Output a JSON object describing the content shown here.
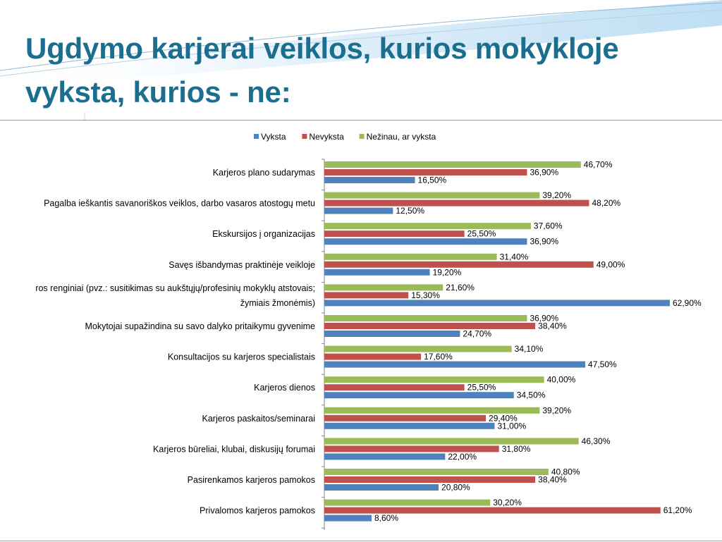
{
  "slide": {
    "title_line1": "Ugdymo karjerai veiklos, kurios mokykloje",
    "title_line2": "vyksta, kurios - ne:"
  },
  "chart_data": {
    "type": "bar",
    "orientation": "horizontal",
    "title": "",
    "xlabel": "",
    "ylabel": "",
    "xlim": [
      0,
      62.9
    ],
    "value_format": "percent_comma_2dp",
    "grid": false,
    "legend_position": "top",
    "categories": [
      "Karjeros plano sudarymas",
      "Pagalba ieškantis savanoriškos veiklos, darbo vasaros atostogų metu",
      "Ekskursijos į organizacijas",
      "Savęs išbandymas praktinėje veikloje",
      "Karjeros renginiai (pvz.: susitikimas su aukštųjų/profesinių mokyklų atstovais; žymiais žmonėmis)",
      "Mokytojai supažindina su savo dalyko pritaikymu gyvenime",
      "Konsultacijos su karjeros specialistais",
      "Karjeros dienos",
      "Karjeros paskaitos/seminarai",
      "Karjeros būreliai, klubai, diskusijų forumai",
      "Pasirenkamos karjeros pamokos",
      "Privalomos karjeros pamokos"
    ],
    "category_label_lines": [
      [
        "Karjeros plano sudarymas"
      ],
      [
        "Pagalba ieškantis savanoriškos veiklos, darbo vasaros atostogų metu"
      ],
      [
        "Ekskursijos į organizacijas"
      ],
      [
        "Savęs išbandymas praktinėje veikloje"
      ],
      [
        "ros renginiai (pvz.: susitikimas su aukštųjų/profesinių mokyklų atstovais;",
        "žymiais žmonėmis)"
      ],
      [
        "Mokytojai supažindina su savo dalyko pritaikymu gyvenime"
      ],
      [
        "Konsultacijos su karjeros specialistais"
      ],
      [
        "Karjeros dienos"
      ],
      [
        "Karjeros paskaitos/seminarai"
      ],
      [
        "Karjeros būreliai, klubai, diskusijų forumai"
      ],
      [
        "Pasirenkamos karjeros pamokos"
      ],
      [
        "Privalomos karjeros pamokos"
      ]
    ],
    "series": [
      {
        "name": "Vyksta",
        "color": "#4f81bd",
        "values": [
          16.5,
          12.5,
          36.9,
          19.2,
          62.9,
          24.7,
          47.5,
          34.5,
          31.0,
          22.0,
          20.8,
          8.6
        ]
      },
      {
        "name": "Nevyksta",
        "color": "#c0504d",
        "values": [
          36.9,
          48.2,
          25.5,
          49.0,
          15.3,
          38.4,
          17.6,
          25.5,
          29.4,
          31.8,
          38.4,
          61.2
        ]
      },
      {
        "name": "Nežinau, ar vyksta",
        "color": "#9bbb59",
        "values": [
          46.7,
          39.2,
          37.6,
          31.4,
          21.6,
          36.9,
          34.1,
          40.0,
          39.2,
          46.3,
          40.8,
          30.2
        ]
      }
    ]
  }
}
